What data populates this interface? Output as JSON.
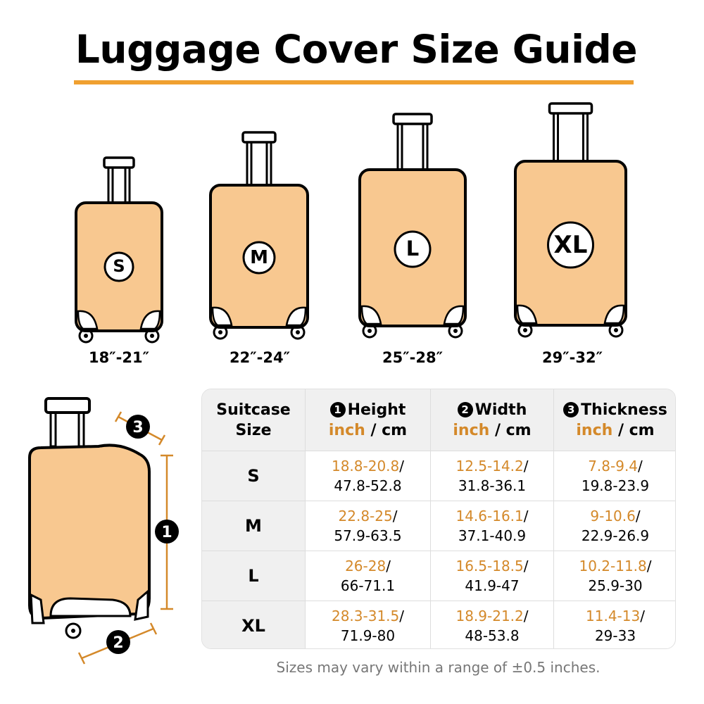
{
  "title": "Luggage Cover Size Guide",
  "colors": {
    "accent": "#f0a030",
    "suitcase_fill": "#f8c890",
    "inch_text": "#d4892a",
    "outline": "#000000"
  },
  "suitcases": [
    {
      "badge": "S",
      "range": "18″-21″"
    },
    {
      "badge": "M",
      "range": "22″-24″"
    },
    {
      "badge": "L",
      "range": "25″-28″"
    },
    {
      "badge": "XL",
      "range": "29″-32″"
    }
  ],
  "diagram": {
    "markers": [
      "1",
      "2",
      "3"
    ]
  },
  "table": {
    "header": {
      "size": "Suitcase Size",
      "columns": [
        {
          "num": "1",
          "name": "Height",
          "inch": "inch",
          "sep": " / ",
          "cm": "cm"
        },
        {
          "num": "2",
          "name": "Width",
          "inch": "inch",
          "sep": " / ",
          "cm": "cm"
        },
        {
          "num": "3",
          "name": "Thickness",
          "inch": "inch",
          "sep": " / ",
          "cm": "cm"
        }
      ]
    },
    "rows": [
      {
        "size": "S",
        "cells": [
          {
            "inch": "18.8-20.8",
            "cm": "47.8-52.8"
          },
          {
            "inch": "12.5-14.2",
            "cm": "31.8-36.1"
          },
          {
            "inch": "7.8-9.4",
            "cm": "19.8-23.9"
          }
        ]
      },
      {
        "size": "M",
        "cells": [
          {
            "inch": "22.8-25",
            "cm": "57.9-63.5"
          },
          {
            "inch": "14.6-16.1",
            "cm": "37.1-40.9"
          },
          {
            "inch": "9-10.6",
            "cm": "22.9-26.9"
          }
        ]
      },
      {
        "size": "L",
        "cells": [
          {
            "inch": "26-28",
            "cm": "66-71.1"
          },
          {
            "inch": "16.5-18.5",
            "cm": "41.9-47"
          },
          {
            "inch": "10.2-11.8",
            "cm": "25.9-30"
          }
        ]
      },
      {
        "size": "XL",
        "cells": [
          {
            "inch": "28.3-31.5",
            "cm": "71.9-80"
          },
          {
            "inch": "18.9-21.2",
            "cm": "48-53.8"
          },
          {
            "inch": "11.4-13",
            "cm": "29-33"
          }
        ]
      }
    ]
  },
  "footnote": "Sizes may vary within a range of ±0.5 inches."
}
